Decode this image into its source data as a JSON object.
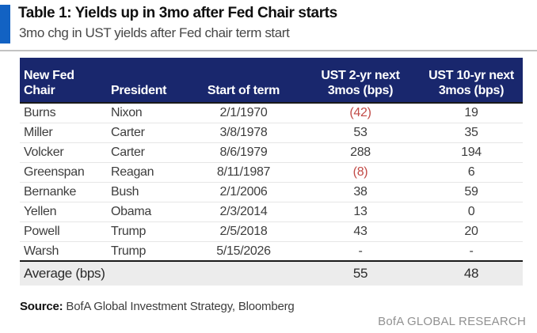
{
  "colors": {
    "accent-blue": "#1262c3",
    "header-navy": "#19276d",
    "negative-red": "#c14a46",
    "text-body": "#3d3d3d",
    "text-muted": "#919191",
    "avg-bg": "#ececec",
    "rule-light": "#e6e6e6",
    "rule-dark": "#1a1a1a",
    "topline": "#c2c2c2"
  },
  "header": {
    "title": "Table 1: Yields up in 3mo after Fed Chair starts",
    "subtitle": "3mo chg in UST yields after Fed chair term start"
  },
  "table": {
    "columns": [
      {
        "l1": "New Fed",
        "l2": "Chair"
      },
      {
        "l1": "",
        "l2": "President"
      },
      {
        "l1": "",
        "l2": "Start of term"
      },
      {
        "l1": "UST 2-yr next",
        "l2": "3mos (bps)"
      },
      {
        "l1": "UST 10-yr next",
        "l2": "3mos (bps)"
      }
    ],
    "rows": [
      {
        "chair": "Burns",
        "president": "Nixon",
        "start": "2/1/1970",
        "ust2": "(42)",
        "ust2_neg": true,
        "ust10": "19",
        "ust10_neg": false
      },
      {
        "chair": "Miller",
        "president": "Carter",
        "start": "3/8/1978",
        "ust2": "53",
        "ust2_neg": false,
        "ust10": "35",
        "ust10_neg": false
      },
      {
        "chair": "Volcker",
        "president": "Carter",
        "start": "8/6/1979",
        "ust2": "288",
        "ust2_neg": false,
        "ust10": "194",
        "ust10_neg": false
      },
      {
        "chair": "Greenspan",
        "president": "Reagan",
        "start": "8/11/1987",
        "ust2": "(8)",
        "ust2_neg": true,
        "ust10": "6",
        "ust10_neg": false
      },
      {
        "chair": "Bernanke",
        "president": "Bush",
        "start": "2/1/2006",
        "ust2": "38",
        "ust2_neg": false,
        "ust10": "59",
        "ust10_neg": false
      },
      {
        "chair": "Yellen",
        "president": "Obama",
        "start": "2/3/2014",
        "ust2": "13",
        "ust2_neg": false,
        "ust10": "0",
        "ust10_neg": false
      },
      {
        "chair": "Powell",
        "president": "Trump",
        "start": "2/5/2018",
        "ust2": "43",
        "ust2_neg": false,
        "ust10": "20",
        "ust10_neg": false
      },
      {
        "chair": "Warsh",
        "president": "Trump",
        "start": "5/15/2026",
        "ust2": "-",
        "ust2_neg": false,
        "ust10": "-",
        "ust10_neg": false
      }
    ],
    "average": {
      "label": "Average (bps)",
      "ust2": "55",
      "ust10": "48"
    }
  },
  "footer": {
    "source_label": "Source:",
    "source_text": " BofA Global Investment Strategy, Bloomberg",
    "brand": "BofA GLOBAL RESEARCH"
  },
  "chart_data": {
    "type": "table",
    "title": "Table 1: Yields up in 3mo after Fed Chair starts",
    "subtitle": "3mo chg in UST yields after Fed chair term start",
    "columns": [
      "New Fed Chair",
      "President",
      "Start of term",
      "UST 2-yr next 3mos (bps)",
      "UST 10-yr next 3mos (bps)"
    ],
    "rows": [
      [
        "Burns",
        "Nixon",
        "2/1/1970",
        -42,
        19
      ],
      [
        "Miller",
        "Carter",
        "3/8/1978",
        53,
        35
      ],
      [
        "Volcker",
        "Carter",
        "8/6/1979",
        288,
        194
      ],
      [
        "Greenspan",
        "Reagan",
        "8/11/1987",
        -8,
        6
      ],
      [
        "Bernanke",
        "Bush",
        "2/1/2006",
        38,
        59
      ],
      [
        "Yellen",
        "Obama",
        "2/3/2014",
        13,
        0
      ],
      [
        "Powell",
        "Trump",
        "2/5/2018",
        43,
        20
      ],
      [
        "Warsh",
        "Trump",
        "5/15/2026",
        null,
        null
      ]
    ],
    "average_row": [
      "Average (bps)",
      55,
      48
    ],
    "notes": "Negative values shown in red parentheses",
    "source": "BofA Global Investment Strategy, Bloomberg"
  }
}
